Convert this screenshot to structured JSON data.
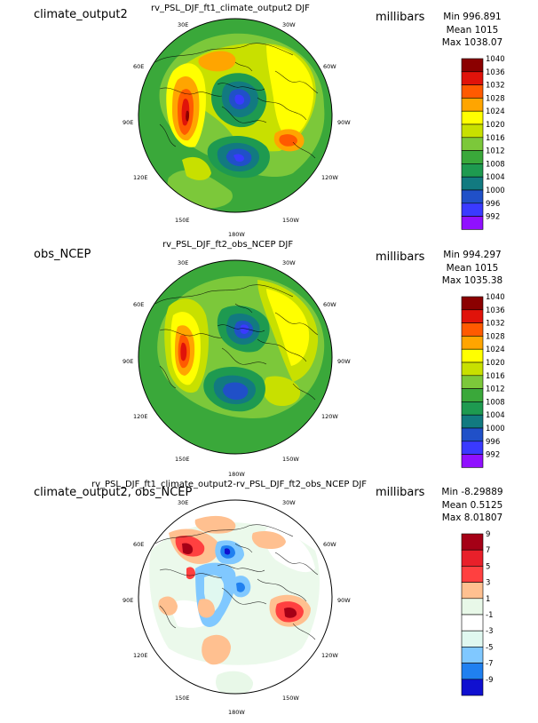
{
  "units": "millibars",
  "panels": [
    {
      "case_title": "climate_output2",
      "main_title": "rv_PSL_DJF_ft1_climate_output2  DJF",
      "stats": {
        "min": "Min 996.891",
        "mean": "Mean 1015",
        "max": "Max 1038.07"
      },
      "colorbar": {
        "levels": [
          "1040",
          "1036",
          "1032",
          "1028",
          "1024",
          "1020",
          "1016",
          "1012",
          "1008",
          "1004",
          "1000",
          "996",
          "992"
        ],
        "colors": [
          "#8b0000",
          "#e0130a",
          "#ff5a00",
          "#ffa500",
          "#ffff00",
          "#c8e000",
          "#7cc83a",
          "#3aa83a",
          "#1e9a50",
          "#127a80",
          "#2050c8",
          "#3a3aff",
          "#9010ff"
        ]
      },
      "lon_labels": [
        "30E",
        "30W",
        "60E",
        "60W",
        "90E",
        "90W",
        "120E",
        "120W",
        "150E",
        "150W",
        "180W"
      ]
    },
    {
      "case_title": "obs_NCEP",
      "main_title": "rv_PSL_DJF_ft2_obs_NCEP  DJF",
      "stats": {
        "min": "Min 994.297",
        "mean": "Mean 1015",
        "max": "Max 1035.38"
      },
      "colorbar": {
        "levels": [
          "1040",
          "1036",
          "1032",
          "1028",
          "1024",
          "1020",
          "1016",
          "1012",
          "1008",
          "1004",
          "1000",
          "996",
          "992"
        ],
        "colors": [
          "#8b0000",
          "#e0130a",
          "#ff5a00",
          "#ffa500",
          "#ffff00",
          "#c8e000",
          "#7cc83a",
          "#3aa83a",
          "#1e9a50",
          "#127a80",
          "#2050c8",
          "#3a3aff",
          "#9010ff"
        ]
      },
      "lon_labels": [
        "30E",
        "30W",
        "60E",
        "60W",
        "90E",
        "90W",
        "120E",
        "120W",
        "150E",
        "150W",
        "180W"
      ]
    },
    {
      "case_title": "climate_output2, obs_NCEP",
      "main_title": "rv_PSL_DJF_ft1_climate_output2-rv_PSL_DJF_ft2_obs_NCEP  DJF",
      "stats": {
        "min": "Min -8.29889",
        "mean": "Mean 0.5125",
        "max": "Max 8.01807"
      },
      "colorbar": {
        "levels": [
          "9",
          "7",
          "5",
          "3",
          "1",
          "-1",
          "-3",
          "-5",
          "-7",
          "-9"
        ],
        "colors": [
          "#a50016",
          "#e8202a",
          "#ff4040",
          "#ffc090",
          "#e8f8e8",
          "#ffffff",
          "#e0f8f0",
          "#80c8ff",
          "#2080f0",
          "#1010d0"
        ]
      },
      "lon_labels": [
        "30E",
        "30W",
        "60E",
        "60W",
        "90E",
        "90W",
        "120E",
        "120W",
        "150E",
        "150W",
        "180W"
      ]
    }
  ],
  "chart_data": [
    {
      "type": "heatmap",
      "projection": "polar-stereographic",
      "title": "rv_PSL_DJF_ft1_climate_output2  DJF",
      "units": "millibars",
      "stats": {
        "min": 996.891,
        "mean": 1015,
        "max": 1038.07
      },
      "contour_levels": [
        992,
        996,
        1000,
        1004,
        1008,
        1012,
        1016,
        1020,
        1024,
        1028,
        1032,
        1036,
        1040
      ],
      "longitude_labels": [
        "30E",
        "30W",
        "60E",
        "60W",
        "90E",
        "90W",
        "120E",
        "120W",
        "150E",
        "150W",
        "180W"
      ]
    },
    {
      "type": "heatmap",
      "projection": "polar-stereographic",
      "title": "rv_PSL_DJF_ft2_obs_NCEP  DJF",
      "units": "millibars",
      "stats": {
        "min": 994.297,
        "mean": 1015,
        "max": 1035.38
      },
      "contour_levels": [
        992,
        996,
        1000,
        1004,
        1008,
        1012,
        1016,
        1020,
        1024,
        1028,
        1032,
        1036,
        1040
      ],
      "longitude_labels": [
        "30E",
        "30W",
        "60E",
        "60W",
        "90E",
        "90W",
        "120E",
        "120W",
        "150E",
        "150W",
        "180W"
      ]
    },
    {
      "type": "heatmap",
      "projection": "polar-stereographic",
      "title": "rv_PSL_DJF_ft1_climate_output2-rv_PSL_DJF_ft2_obs_NCEP  DJF",
      "units": "millibars",
      "stats": {
        "min": -8.29889,
        "mean": 0.5125,
        "max": 8.01807
      },
      "contour_levels": [
        -9,
        -7,
        -5,
        -3,
        -1,
        1,
        3,
        5,
        7,
        9
      ],
      "longitude_labels": [
        "30E",
        "30W",
        "60E",
        "60W",
        "90E",
        "90W",
        "120E",
        "120W",
        "150E",
        "150W",
        "180W"
      ]
    }
  ]
}
